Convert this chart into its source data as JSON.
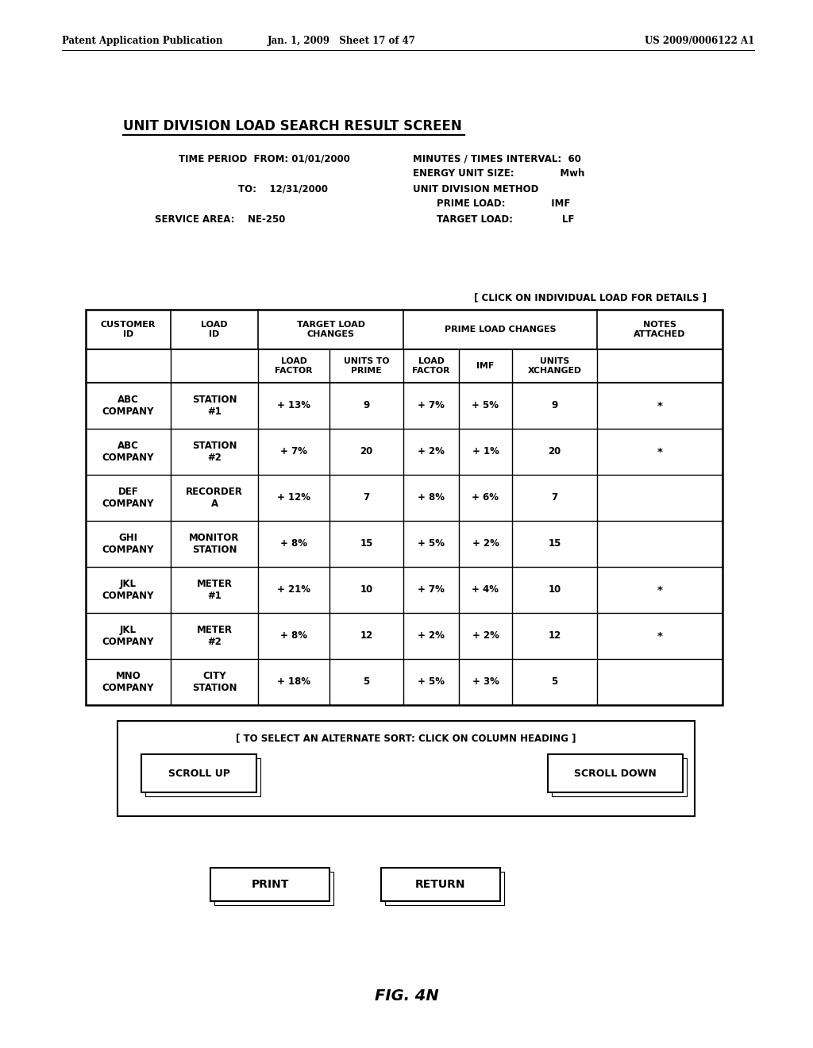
{
  "header_left": "Patent Application Publication",
  "header_middle": "Jan. 1, 2009   Sheet 17 of 47",
  "header_right": "US 2009/0006122 A1",
  "screen_title": "UNIT DIVISION LOAD SEARCH RESULT SCREEN",
  "click_note": "[ CLICK ON INDIVIDUAL LOAD FOR DETAILS ]",
  "rows": [
    [
      "ABC\nCOMPANY",
      "STATION\n#1",
      "+ 13%",
      "9",
      "+ 7%",
      "+ 5%",
      "9",
      "*"
    ],
    [
      "ABC\nCOMPANY",
      "STATION\n#2",
      "+ 7%",
      "20",
      "+ 2%",
      "+ 1%",
      "20",
      "*"
    ],
    [
      "DEF\nCOMPANY",
      "RECORDER\nA",
      "+ 12%",
      "7",
      "+ 8%",
      "+ 6%",
      "7",
      ""
    ],
    [
      "GHI\nCOMPANY",
      "MONITOR\nSTATION",
      "+ 8%",
      "15",
      "+ 5%",
      "+ 2%",
      "15",
      ""
    ],
    [
      "JKL\nCOMPANY",
      "METER\n#1",
      "+ 21%",
      "10",
      "+ 7%",
      "+ 4%",
      "10",
      "*"
    ],
    [
      "JKL\nCOMPANY",
      "METER\n#2",
      "+ 8%",
      "12",
      "+ 2%",
      "+ 2%",
      "12",
      "*"
    ],
    [
      "MNO\nCOMPANY",
      "CITY\nSTATION",
      "+ 18%",
      "5",
      "+ 5%",
      "+ 3%",
      "5",
      ""
    ]
  ],
  "sort_note": "[ TO SELECT AN ALTERNATE SORT: CLICK ON COLUMN HEADING ]",
  "btn1": "SCROLL UP",
  "btn2": "SCROLL DOWN",
  "btn3": "PRINT",
  "btn4": "RETURN",
  "fig_label": "FIG. 4N",
  "bg_color": "#ffffff",
  "text_color": "#000000"
}
